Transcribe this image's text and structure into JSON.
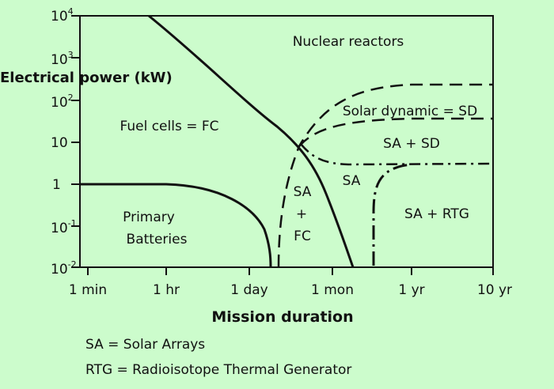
{
  "figure": {
    "y_axis_title": "Electrical power (kW)",
    "x_axis_title": "Mission duration",
    "y_ticks": [
      {
        "base": "10",
        "exp": "4"
      },
      {
        "base": "10",
        "exp": "3"
      },
      {
        "base": "10",
        "exp": "2"
      },
      {
        "base": "10",
        "exp": ""
      },
      {
        "base": "1",
        "exp": ""
      },
      {
        "base": "10",
        "exp": "-1"
      },
      {
        "base": "10",
        "exp": "-2"
      }
    ],
    "x_ticks": [
      "1 min",
      "1 hr",
      "1 day",
      "1 mon",
      "1 yr",
      "10 yr"
    ],
    "regions": {
      "nuclear": "Nuclear reactors",
      "fuel_cells": "Fuel cells = FC",
      "primary_line1": "Primary",
      "primary_line2": "Batteries",
      "solar_dynamic": "Solar dynamic = SD",
      "sa_sd": "SA + SD",
      "sa": "SA",
      "sa_fc_1": "SA",
      "sa_fc_2": "+",
      "sa_fc_3": "FC",
      "sa_rtg": "SA + RTG"
    },
    "legend": {
      "line1": "SA = Solar Arrays",
      "line2": "RTG = Radioisotope Thermal Generator"
    }
  }
}
